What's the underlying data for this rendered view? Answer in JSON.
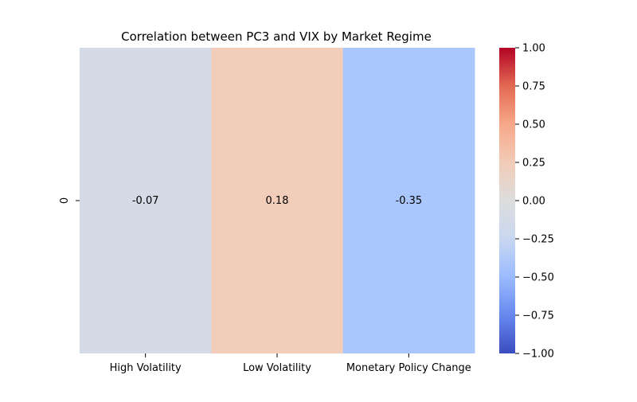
{
  "chart_data": {
    "type": "heatmap",
    "title": "Correlation between PC3 and VIX by Market Regime",
    "xlabel": "",
    "ylabel": "",
    "x_categories": [
      "High Volatility",
      "Low Volatility",
      "Monetary Policy Change"
    ],
    "y_categories": [
      "0"
    ],
    "values": [
      [
        -0.07,
        0.18,
        -0.35
      ]
    ],
    "cell_labels": [
      [
        "-0.07",
        "0.18",
        "-0.35"
      ]
    ],
    "cell_colors": [
      [
        "#d4dae6",
        "#f1cdba",
        "#aac7fd"
      ]
    ],
    "colorbar": {
      "min": -1.0,
      "max": 1.0,
      "ticks": [
        1.0,
        0.75,
        0.5,
        0.25,
        0.0,
        -0.25,
        -0.5,
        -0.75,
        -1.0
      ],
      "tick_labels": [
        "1.00",
        "0.75",
        "0.50",
        "0.25",
        "0.00",
        "−0.25",
        "−0.50",
        "−0.75",
        "−1.00"
      ],
      "colormap": "coolwarm",
      "stops": [
        "#3b4cc0",
        "#6788ee",
        "#9abbff",
        "#c9d7f0",
        "#dddddd",
        "#f2cbb7",
        "#f7a889",
        "#e26952",
        "#b40426"
      ]
    }
  }
}
